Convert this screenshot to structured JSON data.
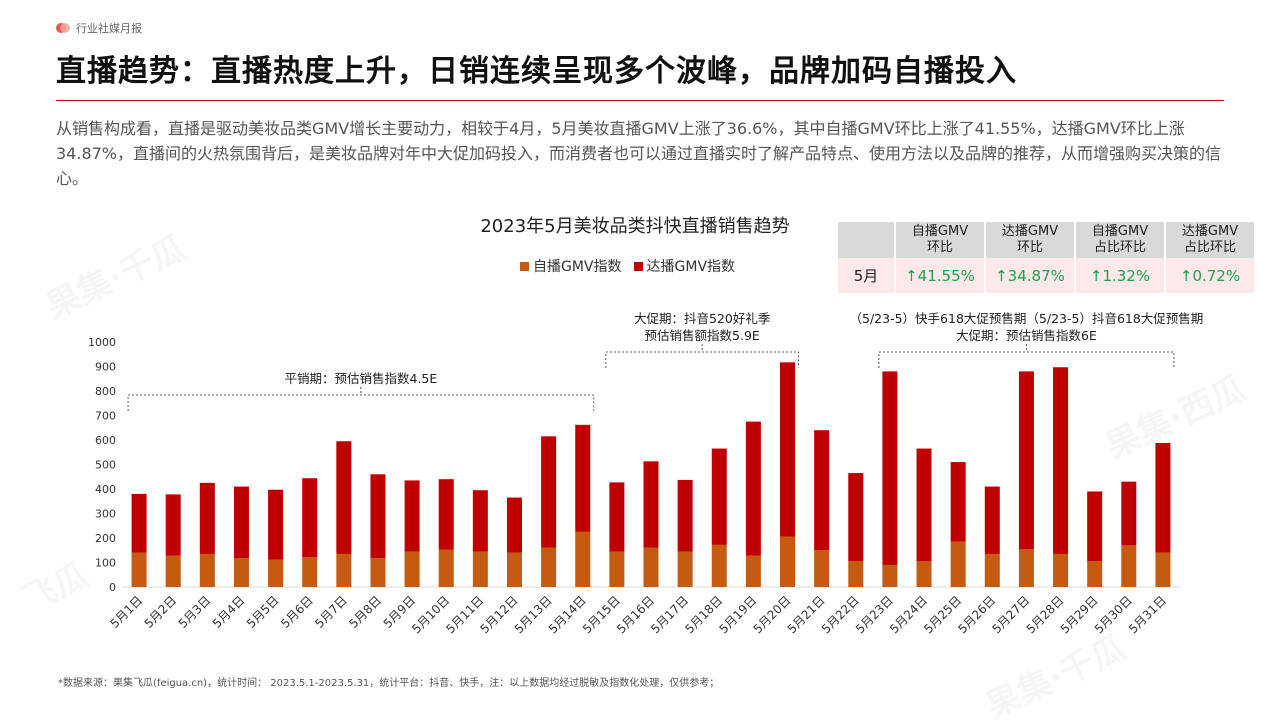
{
  "header": {
    "brand_label": "行业社媒月报",
    "title": "直播趋势：直播热度上升，日销连续呈现多个波峰，品牌加码自播投入"
  },
  "intro_text": "从销售构成看，直播是驱动美妆品类GMV增长主要动力，相较于4月，5月美妆直播GMV上涨了36.6%，其中自播GMV环比上涨了41.55%，达播GMV环比上涨34.87%，直播间的火热氛围背后，是美妆品牌对年中大促加码投入，而消费者也可以通过直播实时了解产品特点、使用方法以及品牌的推荐，从而增强购买决策的信心。",
  "growth_table": {
    "headers": [
      "自播GMV\n环比",
      "达播GMV\n环比",
      "自播GMV\n占比环比",
      "达播GMV\n占比环比"
    ],
    "row_label": "5月",
    "values": [
      "↑41.55%",
      "↑34.87%",
      "↑1.32%",
      "↑0.72%"
    ],
    "value_color": "#1aa34a"
  },
  "watermark": {
    "brand": "果集·千瓜",
    "brand2": "果集·西瓜",
    "brand3": "飞瓜"
  },
  "footnote": "*数据来源：果集飞瓜(feigua.cn)，统计时间： 2023.5.1-2023.5.31，统计平台：抖音、快手，注：以上数据均经过脱敏及指数化处理，仅供参考；",
  "chart_data": {
    "type": "bar",
    "stacked": true,
    "title": "2023年5月美妆品类抖快直播销售趋势",
    "ylim": [
      0,
      1000
    ],
    "yticks": [
      0,
      100,
      200,
      300,
      400,
      500,
      600,
      700,
      800,
      900,
      1000
    ],
    "grid": false,
    "legend_position": "top",
    "categories": [
      "5月1日",
      "5月2日",
      "5月3日",
      "5月4日",
      "5月5日",
      "5月6日",
      "5月7日",
      "5月8日",
      "5月9日",
      "5月10日",
      "5月11日",
      "5月12日",
      "5月13日",
      "5月14日",
      "5月15日",
      "5月16日",
      "5月17日",
      "5月18日",
      "5月19日",
      "5月20日",
      "5月21日",
      "5月22日",
      "5月23日",
      "5月24日",
      "5月25日",
      "5月26日",
      "5月27日",
      "5月28日",
      "5月29日",
      "5月30日",
      "5月31日"
    ],
    "series": [
      {
        "name": "自播GMV指数",
        "color": "#c55a11",
        "values": [
          140,
          128,
          135,
          118,
          112,
          122,
          135,
          118,
          145,
          152,
          145,
          140,
          160,
          225,
          145,
          160,
          145,
          172,
          128,
          205,
          150,
          105,
          90,
          105,
          185,
          135,
          155,
          135,
          105,
          170,
          140
        ]
      },
      {
        "name": "达播GMV指数",
        "color": "#c00000",
        "values": [
          240,
          250,
          290,
          292,
          285,
          322,
          460,
          342,
          290,
          288,
          250,
          225,
          455,
          437,
          282,
          353,
          292,
          393,
          547,
          712,
          490,
          360,
          790,
          460,
          325,
          275,
          725,
          762,
          285,
          260,
          448
        ]
      }
    ],
    "annotations": [
      {
        "text": "平销期：预估销售指数4.5E",
        "from": "5月1日",
        "to": "5月14日"
      },
      {
        "text": "大促期：抖音520好礼季\n预估销售额指数5.9E",
        "from": "5月15日",
        "to": "5月20日"
      },
      {
        "text": "（5/23-5）快手618大促预售期（5/23-5）抖音618大促预售期\n大促期：预估销售指数6E",
        "from": "5月23日",
        "to": "5月31日"
      }
    ]
  }
}
